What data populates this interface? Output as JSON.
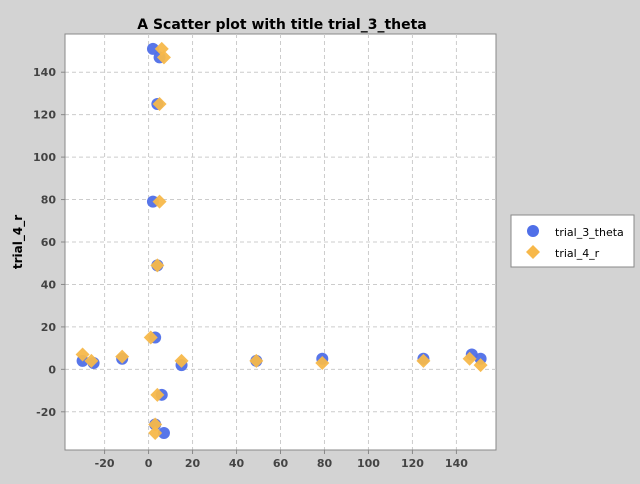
{
  "chart_data": {
    "type": "scatter",
    "title": "A Scatter plot with title trial_3_theta",
    "xlabel": "",
    "ylabel": "trial_4_r",
    "xlim": [
      -38,
      158
    ],
    "ylim": [
      -38,
      158
    ],
    "xticks": [
      -20,
      0,
      20,
      40,
      60,
      80,
      100,
      120,
      140
    ],
    "yticks": [
      -20,
      0,
      20,
      40,
      60,
      80,
      100,
      120,
      140
    ],
    "grid": true,
    "legend_position": "right",
    "series": [
      {
        "name": "trial_3_theta",
        "color": "#4f6fe8",
        "marker": "circle",
        "x": [
          2,
          5,
          4,
          2,
          4,
          3,
          -30,
          -25,
          -12,
          15,
          49,
          79,
          125,
          147,
          151,
          6,
          3,
          7
        ],
        "y": [
          151,
          147,
          125,
          79,
          49,
          15,
          4,
          3,
          5,
          2,
          4,
          5,
          5,
          7,
          5,
          -12,
          -26,
          -30
        ]
      },
      {
        "name": "trial_4_r",
        "color": "#f7b84a",
        "marker": "diamond",
        "x": [
          6,
          7,
          5,
          5,
          4,
          1,
          -30,
          -26,
          -12,
          15,
          49,
          79,
          125,
          146,
          151,
          4,
          3,
          3
        ],
        "y": [
          151,
          147,
          125,
          79,
          49,
          15,
          7,
          4,
          6,
          4,
          4,
          3,
          4,
          5,
          2,
          -12,
          -26,
          -30
        ]
      }
    ]
  }
}
